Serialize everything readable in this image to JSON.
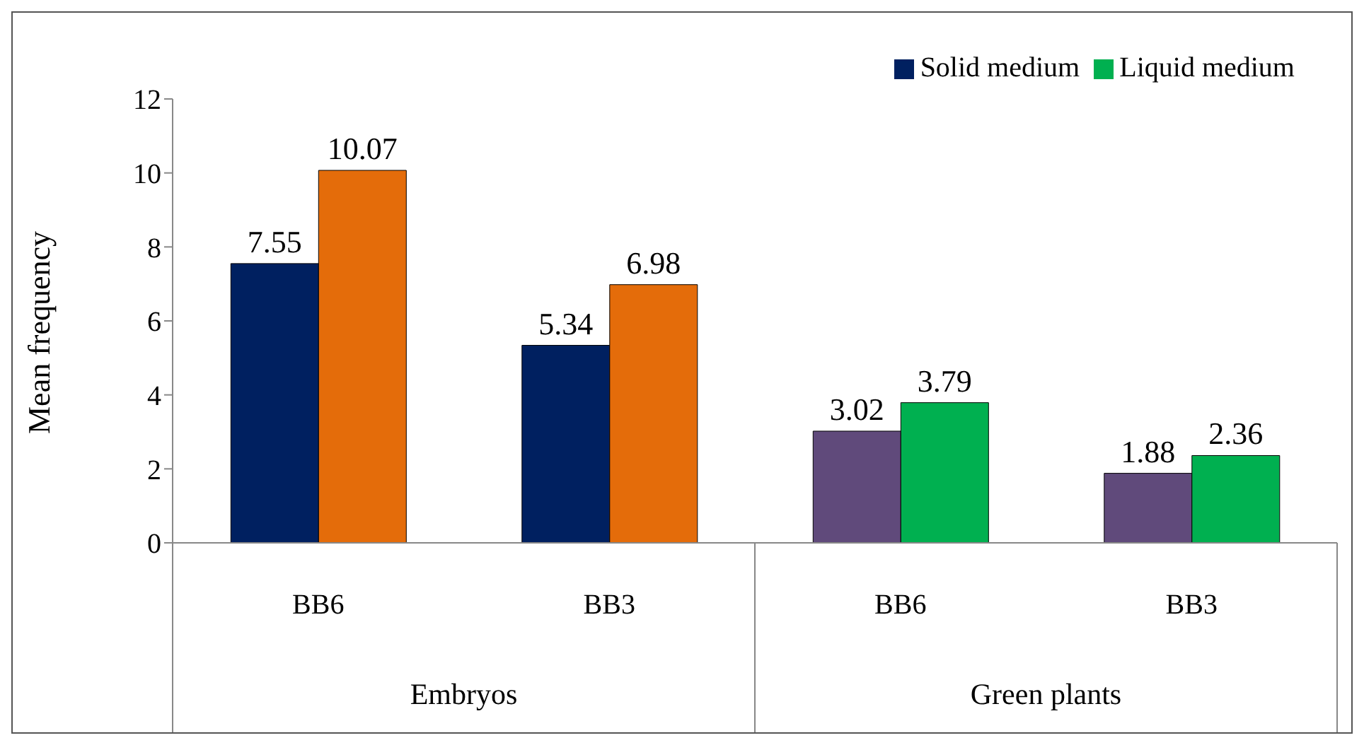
{
  "chart_data": {
    "type": "bar",
    "ylabel": "Mean frequency",
    "categories": [
      "BB6",
      "BB3",
      "BB6",
      "BB3"
    ],
    "series": [
      {
        "name": "Solid medium",
        "color": "#002060",
        "colors": [
          "#002060",
          "#002060",
          "#604a7b",
          "#604a7b"
        ],
        "values": [
          7.55,
          5.34,
          3.02,
          1.88
        ]
      },
      {
        "name": "Liquid medium",
        "color": "#00b050",
        "colors": [
          "#e46c0a",
          "#e46c0a",
          "#00b050",
          "#00b050"
        ],
        "values": [
          10.07,
          6.98,
          3.79,
          2.36
        ]
      }
    ],
    "annotations": [
      "Embryos",
      "Green plants"
    ],
    "ylim": [
      0,
      12
    ],
    "yticks": [
      0,
      2,
      4,
      6,
      8,
      10,
      12
    ],
    "data_labels": true,
    "legend": "top right"
  }
}
